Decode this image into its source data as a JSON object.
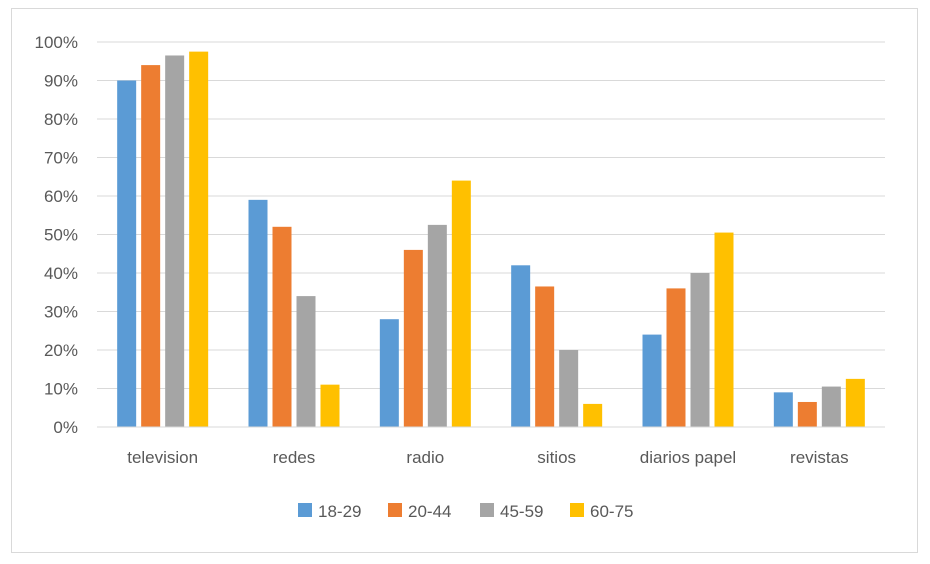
{
  "chart_data": {
    "type": "bar",
    "categories": [
      "television",
      "redes",
      "radio",
      "sitios",
      "diarios papel",
      "revistas"
    ],
    "series": [
      {
        "name": "18-29",
        "color": "#5B9BD5",
        "values": [
          0.9,
          0.59,
          0.28,
          0.42,
          0.24,
          0.09
        ]
      },
      {
        "name": "20-44",
        "color": "#ED7D31",
        "values": [
          0.94,
          0.52,
          0.46,
          0.365,
          0.36,
          0.065
        ]
      },
      {
        "name": "45-59",
        "color": "#A5A5A5",
        "values": [
          0.965,
          0.34,
          0.525,
          0.2,
          0.4,
          0.105
        ]
      },
      {
        "name": "60-75",
        "color": "#FFC000",
        "values": [
          0.975,
          0.11,
          0.64,
          0.06,
          0.505,
          0.125
        ]
      }
    ],
    "ylim": [
      0,
      1
    ],
    "yticks": [
      "0%",
      "10%",
      "20%",
      "30%",
      "40%",
      "50%",
      "60%",
      "70%",
      "80%",
      "90%",
      "100%"
    ],
    "grid": true,
    "legend_position": "bottom"
  }
}
